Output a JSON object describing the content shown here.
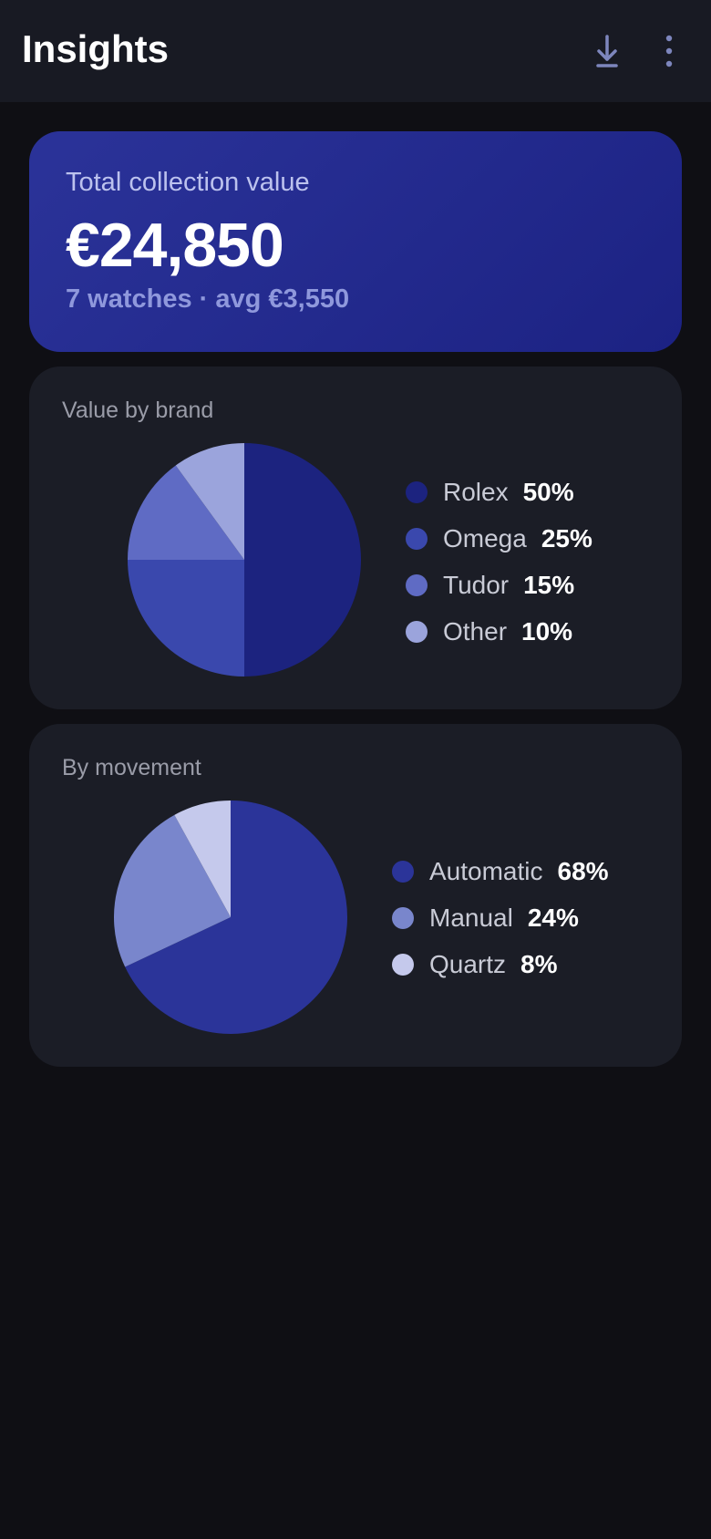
{
  "header": {
    "title": "Insights",
    "download_icon": "download-icon",
    "more_icon": "more-vertical-icon"
  },
  "summary": {
    "label": "Total collection value",
    "value": "€24,850",
    "subtitle": "7 watches · avg €3,550"
  },
  "brand_card": {
    "title": "Value by brand",
    "items": [
      {
        "name": "Rolex",
        "pct_label": "50%",
        "color": "#1c237f"
      },
      {
        "name": "Omega",
        "pct_label": "25%",
        "color": "#3a48ad"
      },
      {
        "name": "Tudor",
        "pct_label": "15%",
        "color": "#5f6bc4"
      },
      {
        "name": "Other",
        "pct_label": "10%",
        "color": "#9ba4dc"
      }
    ]
  },
  "movement_card": {
    "title": "By movement",
    "items": [
      {
        "name": "Automatic",
        "pct_label": "68%",
        "color": "#2b3499"
      },
      {
        "name": "Manual",
        "pct_label": "24%",
        "color": "#7986cc"
      },
      {
        "name": "Quartz",
        "pct_label": "8%",
        "color": "#c5c9ec"
      }
    ]
  },
  "chart_data": [
    {
      "type": "pie",
      "title": "Value by brand",
      "categories": [
        "Rolex",
        "Omega",
        "Tudor",
        "Other"
      ],
      "values": [
        50,
        25,
        15,
        10
      ],
      "colors": [
        "#1c237f",
        "#3a48ad",
        "#5f6bc4",
        "#9ba4dc"
      ],
      "legend": "right"
    },
    {
      "type": "pie",
      "title": "By movement",
      "categories": [
        "Automatic",
        "Manual",
        "Quartz"
      ],
      "values": [
        68,
        24,
        8
      ],
      "colors": [
        "#2b3499",
        "#7986cc",
        "#c5c9ec"
      ],
      "legend": "right"
    }
  ]
}
